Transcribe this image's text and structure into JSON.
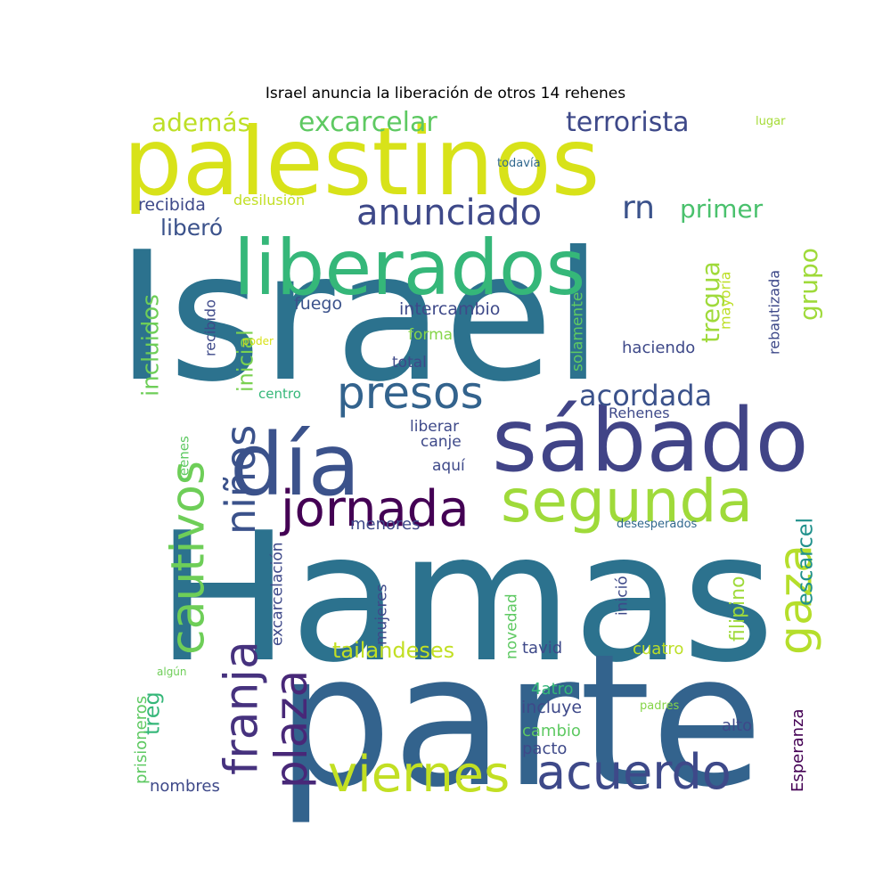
{
  "title": "Israel anuncia la liberación de otros 14 rehenes",
  "words": [
    {
      "text": "Israel",
      "color": "#2c728e"
    },
    {
      "text": "Hamas",
      "color": "#2c728e"
    },
    {
      "text": "parte",
      "color": "#33638d"
    },
    {
      "text": "palestinos",
      "color": "#d8e219"
    },
    {
      "text": "liberados",
      "color": "#35b779"
    },
    {
      "text": "día",
      "color": "#3b528b"
    },
    {
      "text": "sábado",
      "color": "#414487"
    },
    {
      "text": "presos",
      "color": "#33638d"
    },
    {
      "text": "segunda",
      "color": "#9fda3a"
    },
    {
      "text": "jornada",
      "color": "#440154"
    },
    {
      "text": "cautivos",
      "color": "#6ece58"
    },
    {
      "text": "niños",
      "color": "#3b528b"
    },
    {
      "text": "viernes",
      "color": "#c2df23"
    },
    {
      "text": "acuerdo",
      "color": "#3e4989"
    },
    {
      "text": "franja",
      "color": "#46327e"
    },
    {
      "text": "plaza",
      "color": "#482878"
    },
    {
      "text": "gaza",
      "color": "#b5de2b"
    },
    {
      "text": "anunciado",
      "color": "#3e4989"
    },
    {
      "text": "acordada",
      "color": "#3b528b"
    },
    {
      "text": "excarcelar",
      "color": "#5ec962"
    },
    {
      "text": "terrorista",
      "color": "#3e4989"
    },
    {
      "text": "además",
      "color": "#bddf26"
    },
    {
      "text": "rn",
      "color": "#3b528b"
    },
    {
      "text": "primer",
      "color": "#4ac16d"
    },
    {
      "text": "tregua",
      "color": "#9fda3a"
    },
    {
      "text": "grupo",
      "color": "#9fda3a"
    },
    {
      "text": "incluidos",
      "color": "#6ece58"
    },
    {
      "text": "inicial",
      "color": "#7ad151"
    },
    {
      "text": "liberó",
      "color": "#3b528b"
    },
    {
      "text": "recibida",
      "color": "#3e4989"
    },
    {
      "text": "desilusión",
      "color": "#c2df23"
    },
    {
      "text": "todavía",
      "color": "#31688e"
    },
    {
      "text": "lugar",
      "color": "#a5db36"
    },
    {
      "text": "fuego",
      "color": "#3b528b"
    },
    {
      "text": "intercambio",
      "color": "#3e4989"
    },
    {
      "text": "forma",
      "color": "#86d549"
    },
    {
      "text": "total",
      "color": "#3e4989"
    },
    {
      "text": "haciendo",
      "color": "#3e4989"
    },
    {
      "text": "solamente",
      "color": "#5ec962"
    },
    {
      "text": "mayoría",
      "color": "#bddf26"
    },
    {
      "text": "rebautizada",
      "color": "#3e4989"
    },
    {
      "text": "recibido",
      "color": "#3e4989"
    },
    {
      "text": "poder",
      "color": "#d8e219"
    },
    {
      "text": "centro",
      "color": "#35b779"
    },
    {
      "text": "Rehenes",
      "color": "#3e4989"
    },
    {
      "text": "liberar",
      "color": "#3e4989"
    },
    {
      "text": "canje",
      "color": "#3e4989"
    },
    {
      "text": "aquí",
      "color": "#3e4989"
    },
    {
      "text": "reenes",
      "color": "#5ec962"
    },
    {
      "text": "escarcel",
      "color": "#21918c"
    },
    {
      "text": "treg",
      "color": "#35b779"
    },
    {
      "text": "filipino",
      "color": "#9fda3a"
    },
    {
      "text": "menores",
      "color": "#3e4989"
    },
    {
      "text": "desesperados",
      "color": "#31688e"
    },
    {
      "text": "excarcelación",
      "color": "#3e4989"
    },
    {
      "text": "mujeres",
      "color": "#3e4989"
    },
    {
      "text": "novedad",
      "color": "#5ec962"
    },
    {
      "text": "inició",
      "color": "#3e4989"
    },
    {
      "text": "tailandeses",
      "color": "#c2df23"
    },
    {
      "text": "tavid",
      "color": "#3e4989"
    },
    {
      "text": "cuatro",
      "color": "#bddf26"
    },
    {
      "text": "4atro",
      "color": "#35b779"
    },
    {
      "text": "incluye",
      "color": "#3e4989"
    },
    {
      "text": "cambio",
      "color": "#5ec962"
    },
    {
      "text": "pacto",
      "color": "#3e4989"
    },
    {
      "text": "alto",
      "color": "#3e4989"
    },
    {
      "text": "prisioneros",
      "color": "#5ec962"
    },
    {
      "text": "algún",
      "color": "#6ece58"
    },
    {
      "text": "padres",
      "color": "#86d549"
    },
    {
      "text": "nombres",
      "color": "#3e4989"
    },
    {
      "text": "Esperanza",
      "color": "#440154"
    }
  ]
}
